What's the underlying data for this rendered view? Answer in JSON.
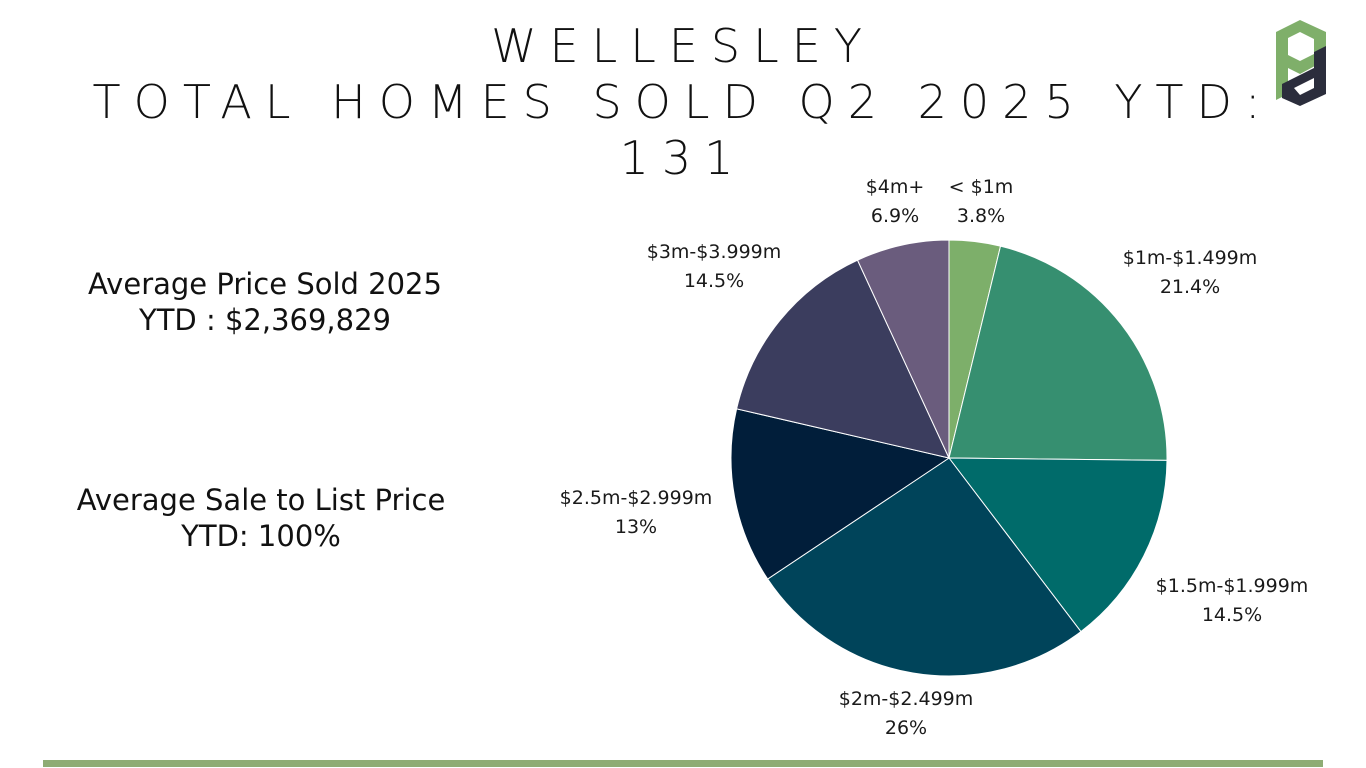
{
  "header": {
    "title_line1": "WELLESLEY",
    "title_line2": "TOTAL HOMES SOLD Q2 2025 YTD:",
    "title_line3": "131"
  },
  "stats": {
    "avg_price_line1": "Average Price Sold 2025",
    "avg_price_line2": "YTD : $2,369,829",
    "sale_to_list_line1": "Average Sale to List Price",
    "sale_to_list_line2": "YTD: 100%"
  },
  "logo": {
    "icon": "pd-logo-icon",
    "colors": [
      "#7faf6a",
      "#2b2d3c"
    ]
  },
  "chart_data": {
    "type": "pie",
    "start_angle_deg": 0,
    "direction": "clockwise",
    "slices": [
      {
        "label": "< $1m",
        "percent_label": "3.8%",
        "value": 3.8,
        "color": "#7daf6a"
      },
      {
        "label": "$1m-$1.499m",
        "percent_label": "21.4%",
        "value": 21.4,
        "color": "#368f70"
      },
      {
        "label": "$1.5m-$1.999m",
        "percent_label": "14.5%",
        "value": 14.5,
        "color": "#006b6a"
      },
      {
        "label": "$2m-$2.499m",
        "percent_label": "26%",
        "value": 26,
        "color": "#00445a"
      },
      {
        "label": "$2.5m-$2.999m",
        "percent_label": "13%",
        "value": 13,
        "color": "#011e3a"
      },
      {
        "label": "$3m-$3.999m",
        "percent_label": "14.5%",
        "value": 14.5,
        "color": "#3b3d5e"
      },
      {
        "label": "$4m+",
        "percent_label": "6.9%",
        "value": 6.9,
        "color": "#6a5c7d"
      }
    ]
  },
  "footer": {
    "bar_color": "#8fac74"
  }
}
